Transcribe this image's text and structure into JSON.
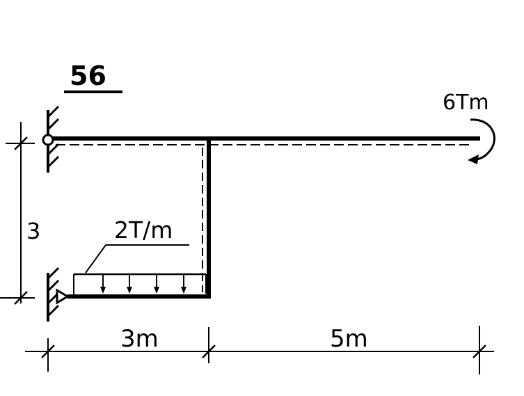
{
  "problem_number": "56",
  "moment_label": "6Tm",
  "load_label": "2T/m",
  "height_label": "3",
  "span_left_label": "3m",
  "span_right_label": "5m"
}
